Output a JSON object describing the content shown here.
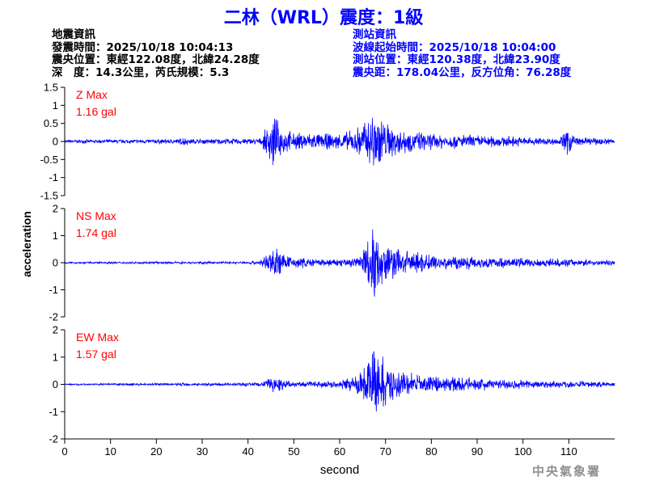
{
  "title": "二林（WRL）震度：1級",
  "earthquake_info": {
    "heading": "地震資訊",
    "origin_time": "發震時間：2025/10/18 10:04:13",
    "epicenter": "震央位置：東經122.08度，北緯24.28度",
    "depth_magnitude": "深　度：14.3公里，芮氏規模：5.3"
  },
  "station_info": {
    "heading": "測站資訊",
    "waveform_start": "波線起始時間：2025/10/18 10:04:00",
    "location": "測站位置：東經120.38度，北緯23.90度",
    "distance_azimuth": "震央距：178.04公里，反方位角：76.28度"
  },
  "agency": "中央氣象署",
  "colors": {
    "trace": "#0000ff",
    "label": "#ff0000",
    "axis": "#000000",
    "title": "#0000ff"
  },
  "chart_data": {
    "type": "line",
    "xlabel": "second",
    "ylabel": "acceleration",
    "xlim": [
      0,
      120
    ],
    "x_ticks": [
      0,
      10,
      20,
      30,
      40,
      50,
      60,
      70,
      80,
      90,
      100,
      110
    ],
    "x_tick_labels": [
      "0",
      "10",
      "20",
      "30",
      "40",
      "50",
      "60",
      "70",
      "80",
      "90",
      "100",
      "110"
    ],
    "grid": false,
    "series": [
      {
        "name": "Z Max",
        "peak": "1.16 gal",
        "ylim": [
          -1.5,
          1.5
        ],
        "y_ticks": [
          1.5,
          1,
          0.5,
          0,
          -0.5,
          -1,
          -1.5
        ],
        "y_tick_labels": [
          "1.5",
          "1",
          "0.5",
          "0",
          "-0.5",
          "-1",
          "-1.5"
        ],
        "envelope": [
          [
            0,
            0.05
          ],
          [
            25,
            0.08
          ],
          [
            26,
            0.18
          ],
          [
            27,
            0.08
          ],
          [
            43,
            0.1
          ],
          [
            44,
            0.45
          ],
          [
            45.5,
            0.85
          ],
          [
            47,
            0.5
          ],
          [
            50,
            0.25
          ],
          [
            52,
            0.3
          ],
          [
            55,
            0.25
          ],
          [
            60,
            0.25
          ],
          [
            63,
            0.35
          ],
          [
            66,
            0.75
          ],
          [
            68,
            1.16
          ],
          [
            70,
            0.6
          ],
          [
            75,
            0.35
          ],
          [
            80,
            0.25
          ],
          [
            90,
            0.2
          ],
          [
            100,
            0.15
          ],
          [
            108,
            0.1
          ],
          [
            110,
            0.5
          ],
          [
            112,
            0.12
          ],
          [
            120,
            0.1
          ]
        ]
      },
      {
        "name": "NS Max",
        "peak": "1.74 gal",
        "ylim": [
          -2,
          2
        ],
        "y_ticks": [
          2,
          1,
          0,
          -1,
          -2
        ],
        "y_tick_labels": [
          "2",
          "1",
          "0",
          "-1",
          "-2"
        ],
        "envelope": [
          [
            0,
            0.04
          ],
          [
            40,
            0.05
          ],
          [
            43,
            0.15
          ],
          [
            45,
            0.5
          ],
          [
            46,
            0.8
          ],
          [
            48,
            0.3
          ],
          [
            55,
            0.15
          ],
          [
            60,
            0.15
          ],
          [
            64,
            0.3
          ],
          [
            66,
            1.0
          ],
          [
            67,
            1.74
          ],
          [
            68,
            1.2
          ],
          [
            70,
            0.8
          ],
          [
            75,
            0.5
          ],
          [
            80,
            0.35
          ],
          [
            90,
            0.25
          ],
          [
            100,
            0.2
          ],
          [
            110,
            0.15
          ],
          [
            120,
            0.1
          ]
        ]
      },
      {
        "name": "EW Max",
        "peak": "1.57 gal",
        "ylim": [
          -2,
          2
        ],
        "y_ticks": [
          2,
          1,
          0,
          -1,
          -2
        ],
        "y_tick_labels": [
          "2",
          "1",
          "0",
          "-1",
          "-2"
        ],
        "envelope": [
          [
            0,
            0.03
          ],
          [
            25,
            0.05
          ],
          [
            26,
            0.1
          ],
          [
            27,
            0.05
          ],
          [
            43,
            0.08
          ],
          [
            45,
            0.35
          ],
          [
            47,
            0.25
          ],
          [
            50,
            0.1
          ],
          [
            55,
            0.12
          ],
          [
            60,
            0.15
          ],
          [
            64,
            0.4
          ],
          [
            66,
            1.0
          ],
          [
            68,
            1.57
          ],
          [
            70,
            0.9
          ],
          [
            75,
            0.5
          ],
          [
            80,
            0.35
          ],
          [
            90,
            0.25
          ],
          [
            100,
            0.2
          ],
          [
            110,
            0.15
          ],
          [
            120,
            0.1
          ]
        ]
      }
    ]
  }
}
